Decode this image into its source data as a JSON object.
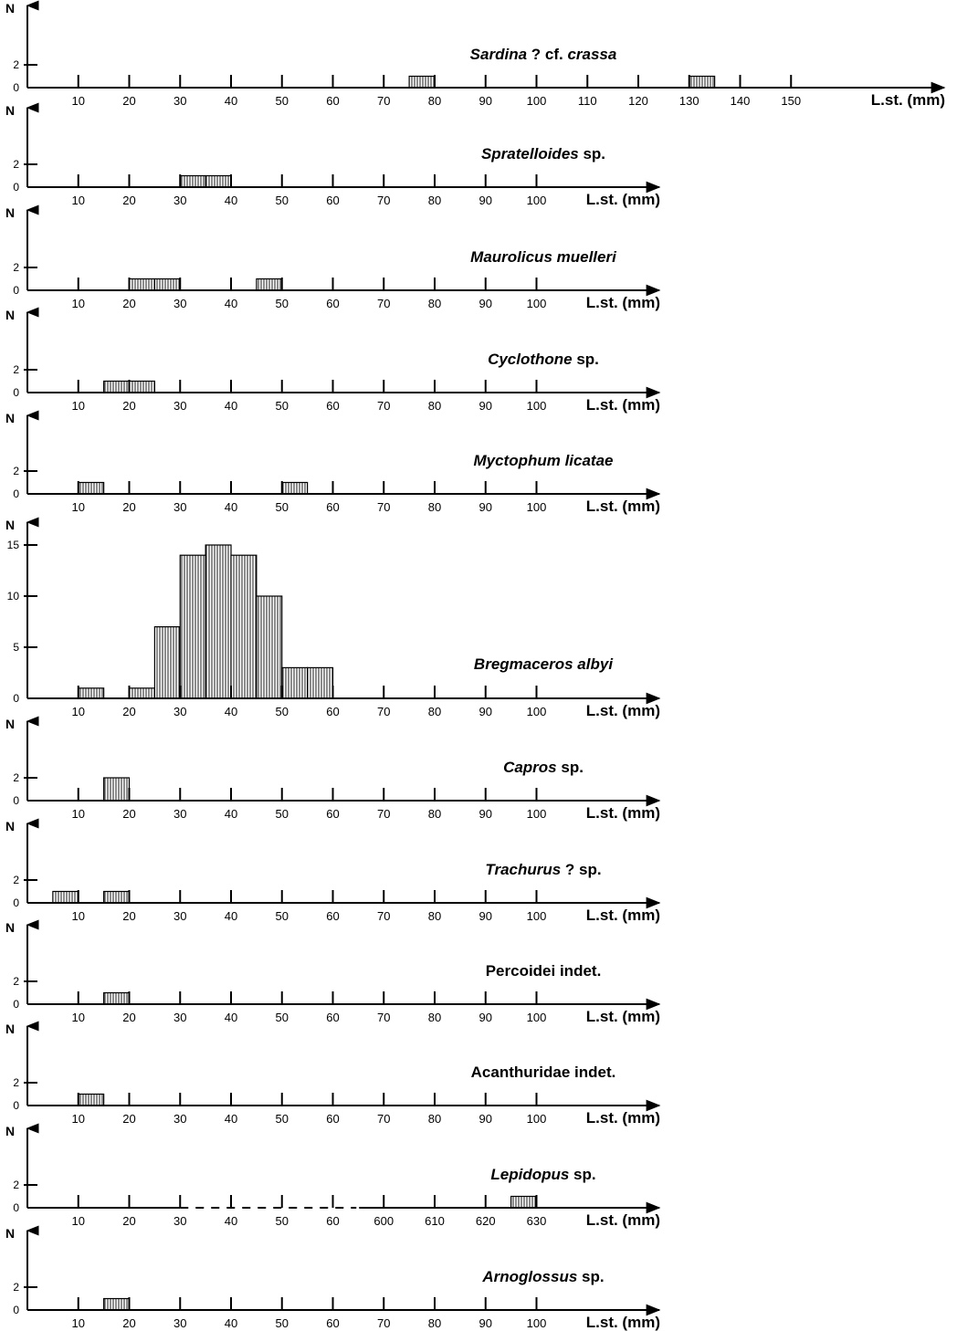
{
  "colors": {
    "ink": "#000000",
    "background": "#ffffff"
  },
  "chart_data": [
    {
      "type": "bar",
      "title": {
        "italic": "Sardina",
        "rest": " ? cf. crassa",
        "italic_parts": [
          "Sardina",
          " ? ",
          "cf. ",
          "crassa"
        ]
      },
      "title_parts": [
        {
          "text": "Sardina",
          "italic": true
        },
        {
          "text": " ? cf. ",
          "italic": false
        },
        {
          "text": "crassa",
          "italic": true
        }
      ],
      "ylabel": "N",
      "xlabel": "L.st. (mm)",
      "y_ticks": [
        0,
        2
      ],
      "ylim": [
        0,
        4
      ],
      "x_ticks": [
        10,
        20,
        30,
        40,
        50,
        60,
        70,
        80,
        90,
        100,
        110,
        120,
        130,
        140,
        150
      ],
      "bins": [
        {
          "from": 75,
          "to": 80,
          "count": 1
        },
        {
          "from": 130,
          "to": 135,
          "count": 1
        }
      ]
    },
    {
      "type": "bar",
      "title_parts": [
        {
          "text": "Spratelloides",
          "italic": true
        },
        {
          "text": " sp.",
          "italic": false
        }
      ],
      "ylabel": "N",
      "xlabel": "L.st. (mm)",
      "y_ticks": [
        0,
        2
      ],
      "ylim": [
        0,
        4
      ],
      "x_ticks": [
        10,
        20,
        30,
        40,
        50,
        60,
        70,
        80,
        90,
        100
      ],
      "bins": [
        {
          "from": 30,
          "to": 35,
          "count": 1
        },
        {
          "from": 35,
          "to": 40,
          "count": 1
        }
      ]
    },
    {
      "type": "bar",
      "title_parts": [
        {
          "text": "Maurolicus muelleri",
          "italic": true
        }
      ],
      "ylabel": "N",
      "xlabel": "L.st. (mm)",
      "y_ticks": [
        0,
        2
      ],
      "ylim": [
        0,
        4
      ],
      "x_ticks": [
        10,
        20,
        30,
        40,
        50,
        60,
        70,
        80,
        90,
        100
      ],
      "bins": [
        {
          "from": 20,
          "to": 25,
          "count": 1
        },
        {
          "from": 25,
          "to": 30,
          "count": 1
        },
        {
          "from": 45,
          "to": 50,
          "count": 1
        }
      ]
    },
    {
      "type": "bar",
      "title_parts": [
        {
          "text": "Cyclothone",
          "italic": true
        },
        {
          "text": " sp.",
          "italic": false
        }
      ],
      "ylabel": "N",
      "xlabel": "L.st. (mm)",
      "y_ticks": [
        0,
        2
      ],
      "ylim": [
        0,
        4
      ],
      "x_ticks": [
        10,
        20,
        30,
        40,
        50,
        60,
        70,
        80,
        90,
        100
      ],
      "bins": [
        {
          "from": 15,
          "to": 20,
          "count": 1
        },
        {
          "from": 20,
          "to": 25,
          "count": 1
        }
      ]
    },
    {
      "type": "bar",
      "title_parts": [
        {
          "text": "Myctophum licatae",
          "italic": true
        }
      ],
      "ylabel": "N",
      "xlabel": "L.st. (mm)",
      "y_ticks": [
        0,
        2
      ],
      "ylim": [
        0,
        4
      ],
      "x_ticks": [
        10,
        20,
        30,
        40,
        50,
        60,
        70,
        80,
        90,
        100
      ],
      "bins": [
        {
          "from": 10,
          "to": 15,
          "count": 1
        },
        {
          "from": 50,
          "to": 55,
          "count": 1
        }
      ]
    },
    {
      "type": "bar",
      "title_parts": [
        {
          "text": "Bregmaceros albyi",
          "italic": true
        }
      ],
      "ylabel": "N",
      "xlabel": "L.st. (mm)",
      "y_ticks": [
        0,
        5,
        10,
        15
      ],
      "ylim": [
        0,
        16
      ],
      "x_ticks": [
        10,
        20,
        30,
        40,
        50,
        60,
        70,
        80,
        90,
        100
      ],
      "bins": [
        {
          "from": 10,
          "to": 15,
          "count": 1
        },
        {
          "from": 20,
          "to": 25,
          "count": 1
        },
        {
          "from": 25,
          "to": 30,
          "count": 7
        },
        {
          "from": 30,
          "to": 35,
          "count": 14
        },
        {
          "from": 35,
          "to": 40,
          "count": 15
        },
        {
          "from": 40,
          "to": 45,
          "count": 14
        },
        {
          "from": 45,
          "to": 50,
          "count": 10
        },
        {
          "from": 50,
          "to": 55,
          "count": 3
        },
        {
          "from": 55,
          "to": 60,
          "count": 3
        }
      ]
    },
    {
      "type": "bar",
      "title_parts": [
        {
          "text": "Capros",
          "italic": true
        },
        {
          "text": " sp.",
          "italic": false
        }
      ],
      "ylabel": "N",
      "xlabel": "L.st. (mm)",
      "y_ticks": [
        0,
        2
      ],
      "ylim": [
        0,
        4
      ],
      "x_ticks": [
        10,
        20,
        30,
        40,
        50,
        60,
        70,
        80,
        90,
        100
      ],
      "bins": [
        {
          "from": 15,
          "to": 20,
          "count": 2
        }
      ]
    },
    {
      "type": "bar",
      "title_parts": [
        {
          "text": "Trachurus",
          "italic": true
        },
        {
          "text": " ? sp.",
          "italic": false
        }
      ],
      "ylabel": "N",
      "xlabel": "L.st. (mm)",
      "y_ticks": [
        0,
        2
      ],
      "ylim": [
        0,
        4
      ],
      "x_ticks": [
        10,
        20,
        30,
        40,
        50,
        60,
        70,
        80,
        90,
        100
      ],
      "bins": [
        {
          "from": 5,
          "to": 10,
          "count": 1
        },
        {
          "from": 15,
          "to": 20,
          "count": 1
        }
      ]
    },
    {
      "type": "bar",
      "title_parts": [
        {
          "text": "Percoidei indet.",
          "italic": false
        }
      ],
      "ylabel": "N",
      "xlabel": "L.st. (mm)",
      "y_ticks": [
        0,
        2
      ],
      "ylim": [
        0,
        4
      ],
      "x_ticks": [
        10,
        20,
        30,
        40,
        50,
        60,
        70,
        80,
        90,
        100
      ],
      "bins": [
        {
          "from": 15,
          "to": 20,
          "count": 1
        }
      ]
    },
    {
      "type": "bar",
      "title_parts": [
        {
          "text": "Acanthuridae indet.",
          "italic": false
        }
      ],
      "ylabel": "N",
      "xlabel": "L.st. (mm)",
      "y_ticks": [
        0,
        2
      ],
      "ylim": [
        0,
        4
      ],
      "x_ticks": [
        10,
        20,
        30,
        40,
        50,
        60,
        70,
        80,
        90,
        100
      ],
      "bins": [
        {
          "from": 10,
          "to": 15,
          "count": 1
        }
      ]
    },
    {
      "type": "bar",
      "title_parts": [
        {
          "text": "Lepidopus",
          "italic": true
        },
        {
          "text": " sp.",
          "italic": false
        }
      ],
      "ylabel": "N",
      "xlabel": "L.st. (mm)",
      "y_ticks": [
        0,
        2
      ],
      "ylim": [
        0,
        4
      ],
      "x_ticks": [
        10,
        20,
        30,
        40,
        50,
        60,
        600,
        610,
        620,
        630
      ],
      "axis_break": {
        "after": 30,
        "before": 600
      },
      "bins": [
        {
          "from": 625,
          "to": 630,
          "count": 1
        }
      ]
    },
    {
      "type": "bar",
      "title_parts": [
        {
          "text": "Arnoglossus",
          "italic": true
        },
        {
          "text": " sp.",
          "italic": false
        }
      ],
      "ylabel": "N",
      "xlabel": "L.st. (mm)",
      "y_ticks": [
        0,
        2
      ],
      "ylim": [
        0,
        4
      ],
      "x_ticks": [
        10,
        20,
        30,
        40,
        50,
        60,
        70,
        80,
        90,
        100
      ],
      "bins": [
        {
          "from": 15,
          "to": 20,
          "count": 1
        }
      ]
    }
  ]
}
